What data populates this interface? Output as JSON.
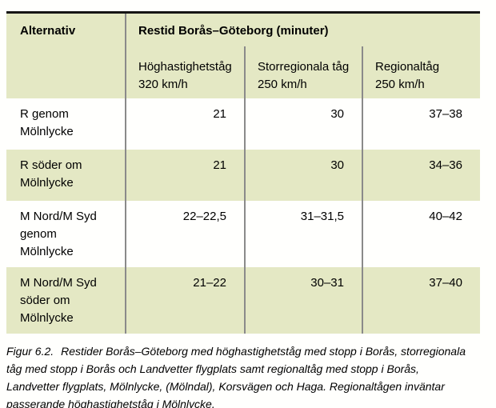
{
  "colors": {
    "row_green": "#e4e8c4",
    "divider": "#8a8a8a",
    "top_border": "#151515",
    "text": "#000000",
    "page_bg": "#fffffd"
  },
  "table": {
    "header": {
      "alternativ_label": "Alternativ",
      "span_title": "Restid Borås–Göteborg (minuter)",
      "subcols": [
        "Höghastighetståg\n320 km/h",
        "Storregionala tåg\n250 km/h",
        "Regionaltåg\n250 km/h"
      ]
    },
    "rows": [
      {
        "label": "R genom\nMölnlycke",
        "values": [
          "21",
          "30",
          "37–38"
        ]
      },
      {
        "label": "R söder om\nMölnlycke",
        "values": [
          "21",
          "30",
          "34–36"
        ]
      },
      {
        "label": "M Nord/M Syd\ngenom\nMölnlycke",
        "values": [
          "22–22,5",
          "31–31,5",
          "40–42"
        ]
      },
      {
        "label": "M Nord/M Syd\nsöder om\nMölnlycke",
        "values": [
          "21–22",
          "30–31",
          "37–40"
        ]
      }
    ]
  },
  "caption": {
    "label": "Figur 6.2.",
    "text": "Restider Borås–Göteborg med höghastighetståg med stopp i Borås, storregionala\ntåg med stopp i Borås och Landvetter flygplats samt regionaltåg med stopp i Borås,\nLandvetter flygplats, Mölnlycke, (Mölndal), Korsvägen och Haga. Regionaltågen inväntar\npasserande höghastighetståg i Mölnlycke."
  }
}
